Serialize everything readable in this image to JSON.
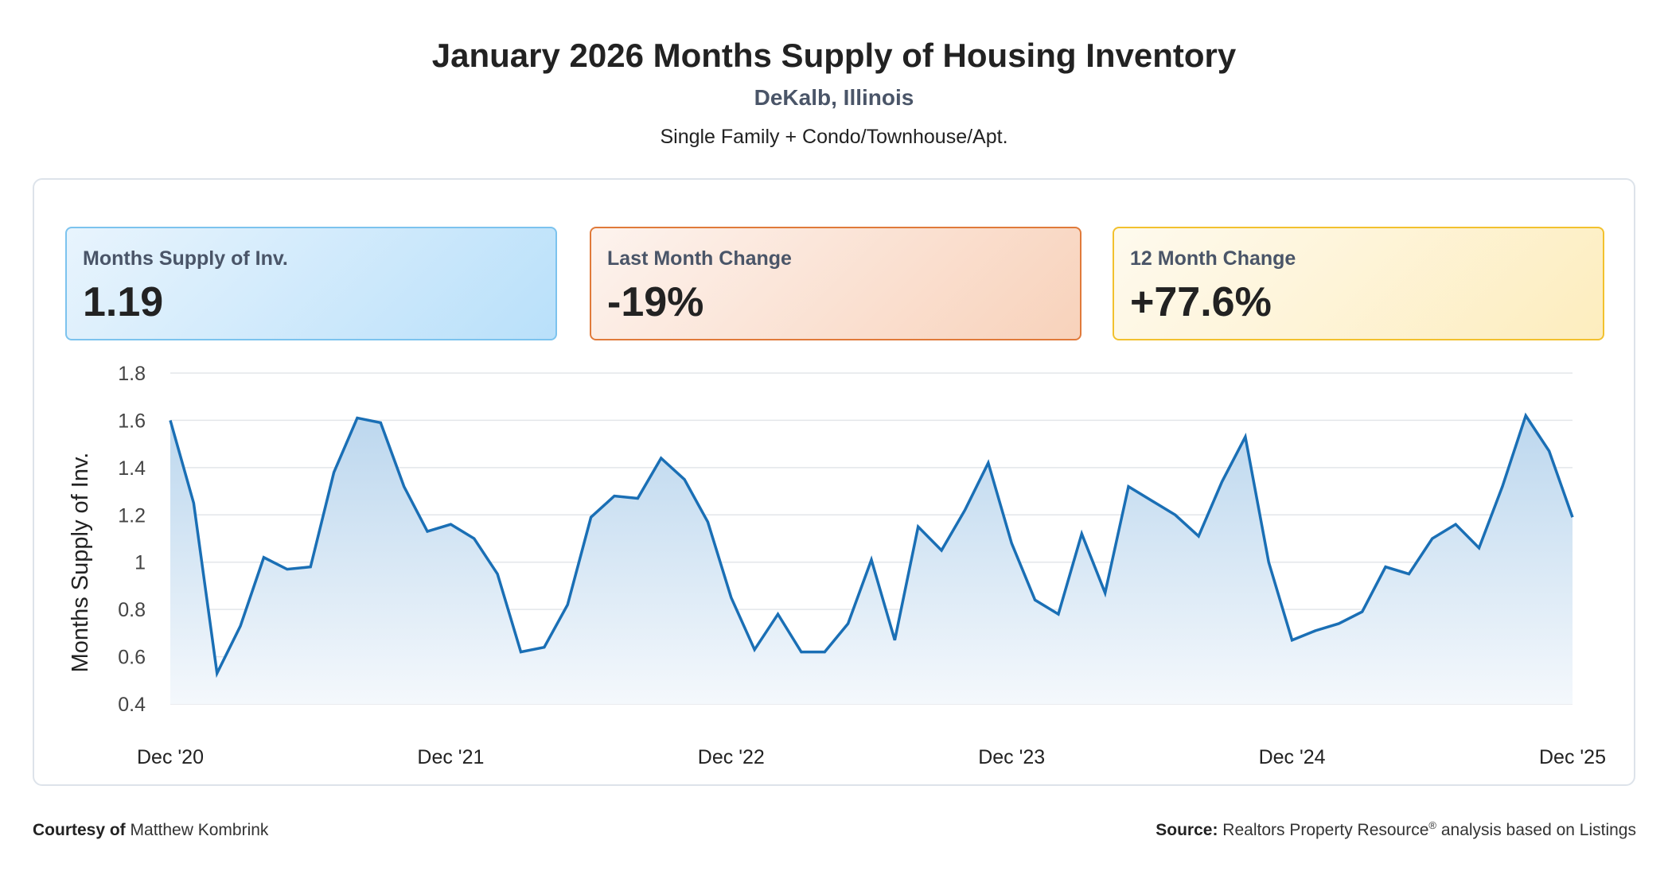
{
  "header": {
    "title": "January 2026 Months Supply of Housing Inventory",
    "location": "DeKalb, Illinois",
    "property_types": "Single Family + Condo/Townhouse/Apt."
  },
  "cards": [
    {
      "label": "Months Supply of Inv.",
      "value": "1.19",
      "border_color": "#7cc3ee"
    },
    {
      "label": "Last Month Change",
      "value": "-19%",
      "border_color": "#e07a3a"
    },
    {
      "label": "12 Month Change",
      "value": "+77.6%",
      "border_color": "#f2c12e"
    }
  ],
  "chart_data": {
    "type": "area",
    "title": "",
    "xlabel": "",
    "ylabel": "Months Supply of Inv.",
    "ylim": [
      0.4,
      1.8
    ],
    "yticks": [
      0.4,
      0.6,
      0.8,
      1,
      1.2,
      1.4,
      1.6,
      1.8
    ],
    "ytick_labels": [
      "0.4",
      "0.6",
      "0.8",
      "1",
      "1.2",
      "1.4",
      "1.6",
      "1.8"
    ],
    "x_start": "Dec '20",
    "x_end": "Dec '25",
    "x_tick_labels": [
      "Dec '20",
      "Dec '21",
      "Dec '22",
      "Dec '23",
      "Dec '24",
      "Dec '25"
    ],
    "x_tick_indices": [
      0,
      12,
      24,
      36,
      48,
      60
    ],
    "grid": true,
    "line_color": "#1a6fb5",
    "fill_color_top": "#bcd7ee",
    "fill_color_bottom": "#f4f8fc",
    "series": [
      {
        "values": [
          1.6,
          1.25,
          0.53,
          0.73,
          1.02,
          0.97,
          0.98,
          1.38,
          1.61,
          1.59,
          1.32,
          1.13,
          1.16,
          1.1,
          0.95,
          0.62,
          0.64,
          0.82,
          1.19,
          1.28,
          1.27,
          1.44,
          1.35,
          1.17,
          0.85,
          0.63,
          0.78,
          0.62,
          0.62,
          0.74,
          1.01,
          0.67,
          1.15,
          1.05,
          1.22,
          1.42,
          1.08,
          0.84,
          0.78,
          1.12,
          0.87,
          1.32,
          1.26,
          1.2,
          1.11,
          1.34,
          1.53,
          1.0,
          0.67,
          0.71,
          0.74,
          0.79,
          0.98,
          0.95,
          1.1,
          1.16,
          1.06,
          1.32,
          1.62,
          1.47,
          1.19
        ]
      }
    ]
  },
  "footer": {
    "courtesy_label": "Courtesy of",
    "courtesy_name": "Matthew Kombrink",
    "source_label": "Source:",
    "source_text_1": "Realtors Property Resource",
    "source_reg": "®",
    "source_text_2": " analysis based on Listings"
  }
}
